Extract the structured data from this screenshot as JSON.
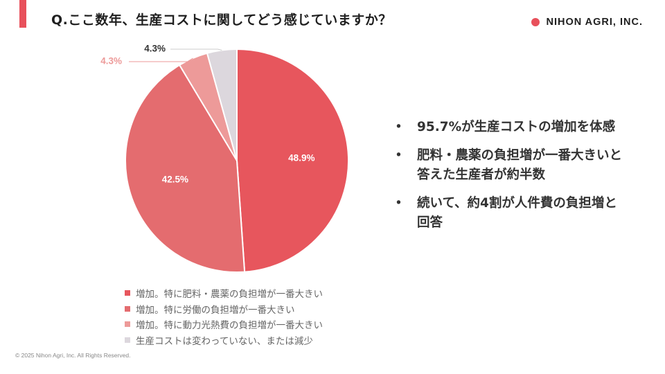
{
  "header": {
    "title": "Q.ここ数年、生産コストに関してどう感じていますか？",
    "accent_color": "#e8505b"
  },
  "brand": {
    "name": "NIHON AGRI, INC.",
    "dot_color": "#e8505b"
  },
  "chart_data": {
    "type": "pie",
    "start": "12 o'clock, clockwise",
    "slices": [
      {
        "label": "増加。特に肥料・農薬の負担増が一番大きい",
        "value": 48.9,
        "value_label": "48.9%",
        "color": "#e7565d"
      },
      {
        "label": "増加。特に労働の負担増が一番大きい",
        "value": 42.5,
        "value_label": "42.5%",
        "color": "#e46c6f"
      },
      {
        "label": "増加。特に動力光熱費の負担増が一番大きい",
        "value": 4.3,
        "value_label": "4.3%",
        "color": "#ed9a99"
      },
      {
        "label": "生産コストは変わっていない、または減少",
        "value": 4.3,
        "value_label": "4.3%",
        "color": "#dcd7dd"
      }
    ]
  },
  "bullets": [
    {
      "marker": "•",
      "text": "95.7%が生産コストの増加を体感"
    },
    {
      "marker": "•",
      "text": "肥料・農薬の負担増が一番大きいと答えた生産者が約半数"
    },
    {
      "marker": "•",
      "text": "続いて、約4割が人件費の負担増と回答"
    }
  ],
  "footer": {
    "copyright": "© 2025 Nihon Agri, Inc. All Rights Reserved."
  }
}
